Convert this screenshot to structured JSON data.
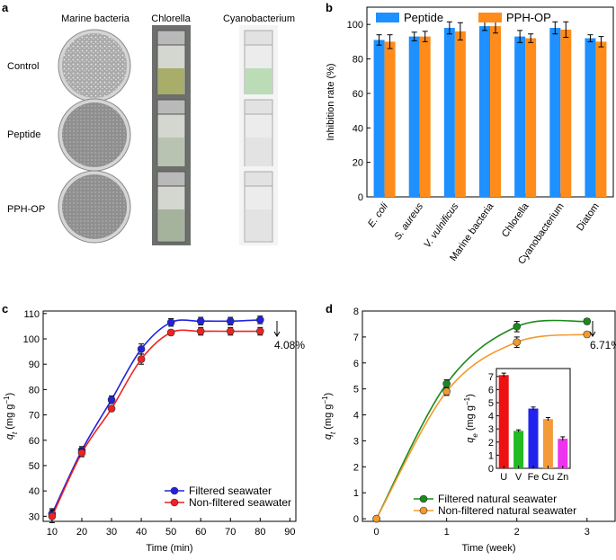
{
  "panels": {
    "a": {
      "label": "a",
      "columns": [
        "Marine bacteria",
        "Chlorella",
        "Cyanobacterium"
      ],
      "rows": [
        "Control",
        "Peptide",
        "PPH-OP"
      ]
    },
    "b_label": "b",
    "c_label": "c",
    "d_label": "d"
  },
  "colors": {
    "peptide": "#1e90ff",
    "pph": "#ff8c1a",
    "blue": "#2222dd",
    "red": "#ee2222",
    "green": "#1a8a1a",
    "orange": "#f39a2c",
    "inset": [
      "#ee1111",
      "#22bb22",
      "#2222ee",
      "#f39a3a",
      "#ee33ee"
    ]
  },
  "chart_data": [
    {
      "id": "b",
      "type": "bar",
      "title": "",
      "ylabel": "Inhibition rate (%)",
      "xlabel": "",
      "ylim": [
        0,
        110
      ],
      "yticks": [
        "0",
        "20",
        "40",
        "60",
        "80",
        "100"
      ],
      "categories": [
        "E. coli",
        "S. aureus",
        "V. vulnificus",
        "Marine bacteria",
        "Chlorella",
        "Cyanobacterium",
        "Diatom"
      ],
      "italic_categories": [
        true,
        true,
        true,
        false,
        false,
        false,
        false
      ],
      "series": [
        {
          "name": "Peptide",
          "values": [
            91,
            93,
            98,
            99,
            93,
            98,
            92
          ],
          "errors": [
            3,
            2.5,
            3.5,
            2.5,
            3.5,
            3.5,
            2
          ]
        },
        {
          "name": "PPH-OP",
          "values": [
            90,
            93,
            96,
            99,
            92,
            97,
            90
          ],
          "errors": [
            4,
            3,
            5,
            4,
            2.5,
            4.5,
            3
          ]
        }
      ],
      "legend": "top"
    },
    {
      "id": "c",
      "type": "line",
      "ylabel_main": "q",
      "ylabel_sub": "t",
      "ylabel_unit": " (mg g",
      "ylabel_exp": "−1",
      "ylabel_close": ")",
      "xlabel": "Time (min)",
      "xlim": [
        7,
        92
      ],
      "ylim": [
        28,
        111
      ],
      "xticks": [
        "10",
        "20",
        "30",
        "40",
        "50",
        "60",
        "70",
        "80",
        "90"
      ],
      "yticks": [
        "30",
        "40",
        "50",
        "60",
        "70",
        "80",
        "90",
        "100",
        "110"
      ],
      "annotation": "4.08%",
      "series": [
        {
          "name": "Filtered seawater",
          "x": [
            10,
            20,
            30,
            40,
            50,
            60,
            70,
            80
          ],
          "y": [
            31,
            56,
            76,
            96,
            106.5,
            107,
            107,
            107.5
          ],
          "errors": [
            2,
            1.5,
            1.5,
            2,
            1.5,
            1.5,
            1.5,
            1.5
          ]
        },
        {
          "name": "Non-filtered seawater",
          "x": [
            10,
            20,
            30,
            40,
            50,
            60,
            70,
            80
          ],
          "y": [
            30,
            55,
            72.5,
            92,
            102.5,
            103,
            103,
            103
          ],
          "errors": [
            2.5,
            1.5,
            1,
            2,
            1,
            1.5,
            1.5,
            1.5
          ]
        }
      ],
      "legend": "bottom-right"
    },
    {
      "id": "d",
      "type": "line",
      "ylabel_main": "q",
      "ylabel_sub": "t",
      "ylabel_unit": " (mg g",
      "ylabel_exp": "−1",
      "ylabel_close": ")",
      "xlabel": "Time (week)",
      "xlim": [
        -0.2,
        3.4
      ],
      "ylim": [
        -0.1,
        8
      ],
      "xticks": [
        "0",
        "1",
        "2",
        "3"
      ],
      "yticks": [
        "0",
        "1",
        "2",
        "3",
        "4",
        "5",
        "6",
        "7",
        "8"
      ],
      "annotation": "6.71%",
      "series": [
        {
          "name": "Filtered natural seawater",
          "x": [
            0,
            1,
            2,
            3
          ],
          "y": [
            0,
            5.2,
            7.4,
            7.6
          ],
          "errors": [
            0,
            0.15,
            0.2,
            0.1
          ]
        },
        {
          "name": "Non-filtered natural seawater",
          "x": [
            0,
            1,
            2,
            3
          ],
          "y": [
            0,
            4.9,
            6.8,
            7.1
          ],
          "errors": [
            0,
            0.15,
            0.2,
            0.1
          ]
        }
      ],
      "legend": "bottom-right"
    },
    {
      "id": "d-inset",
      "type": "bar",
      "ylabel_main": "q",
      "ylabel_sub": "e",
      "ylabel_unit": " (mg g",
      "ylabel_exp": "−1",
      "ylabel_close": ")",
      "ylim": [
        0,
        7.6
      ],
      "yticks": [
        "0",
        "1",
        "2",
        "3",
        "4",
        "5",
        "6",
        "7"
      ],
      "categories": [
        "U",
        "V",
        "Fe",
        "Cu",
        "Zn"
      ],
      "values": [
        7.1,
        2.85,
        4.55,
        3.75,
        2.25
      ],
      "errors": [
        0.15,
        0.08,
        0.12,
        0.12,
        0.15
      ]
    }
  ]
}
